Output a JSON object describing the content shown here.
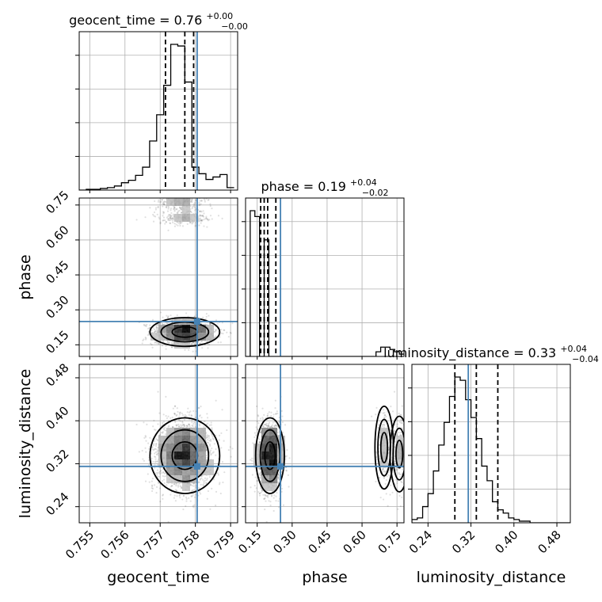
{
  "chart_data": {
    "type": "corner",
    "truth_color": "#4682b4",
    "hist_color": "#000000",
    "scatter_color": "#000000",
    "params": [
      {
        "name": "geocent_time",
        "label": "geocent_time",
        "range": [
          0.7547,
          0.7592
        ],
        "ticks": [
          0.755,
          0.756,
          0.757,
          0.758,
          0.759
        ],
        "tick_labels": [
          "0.755",
          "0.756",
          "0.757",
          "0.758",
          "0.759"
        ],
        "truth": 0.75805,
        "quantiles": [
          0.75715,
          0.7577,
          0.75795
        ],
        "title": {
          "main": "geocent_time = 0.76",
          "sup": "+0.00",
          "sub": "−0.00"
        },
        "hist": {
          "edges_start": 0.7547,
          "bin_width": 0.0002,
          "counts": [
            0,
            1,
            1,
            2,
            3,
            5,
            9,
            12,
            18,
            28,
            60,
            92,
            128,
            178,
            176,
            132,
            28,
            20,
            13,
            16,
            19,
            3
          ]
        }
      },
      {
        "name": "phase",
        "label": "phase",
        "range": [
          0.1,
          0.78
        ],
        "ticks": [
          0.15,
          0.3,
          0.45,
          0.6,
          0.75
        ],
        "tick_labels": [
          "0.15",
          "0.30",
          "0.45",
          "0.60",
          "0.75"
        ],
        "truth": 0.25,
        "quantiles": [
          0.165,
          0.18,
          0.195,
          0.23
        ],
        "title": {
          "main": "phase = 0.19",
          "sup": "+0.04",
          "sub": "−0.02"
        },
        "hist": {
          "edges_start": 0.1,
          "bin_width": 0.02,
          "counts": [
            0,
            125,
            120,
            0,
            100,
            0,
            0,
            0,
            0,
            0,
            0,
            0,
            0,
            0,
            0,
            0,
            0,
            0,
            0,
            0,
            0,
            0,
            0,
            0,
            0,
            0,
            0,
            0,
            4,
            8,
            8,
            6,
            4,
            2
          ]
        }
      },
      {
        "name": "luminosity_distance",
        "label": "luminosity_distance",
        "range": [
          0.21,
          0.505
        ],
        "ticks": [
          0.24,
          0.32,
          0.4,
          0.48
        ],
        "tick_labels": [
          "0.24",
          "0.32",
          "0.40",
          "0.48"
        ],
        "truth": 0.315,
        "quantiles": [
          0.29,
          0.33,
          0.37
        ],
        "title": {
          "main": "luminosity_distance = 0.33",
          "sup": "+0.04",
          "sub": "−0.04"
        },
        "hist": {
          "edges_start": 0.21,
          "bin_width": 0.01,
          "counts": [
            2,
            3,
            10,
            18,
            32,
            48,
            62,
            78,
            90,
            88,
            76,
            65,
            52,
            35,
            26,
            13,
            8,
            6,
            3,
            2,
            1,
            1,
            0,
            0,
            0,
            0,
            0,
            0,
            0,
            0
          ]
        }
      }
    ],
    "clusters": [
      {
        "mx": 0.7577,
        "sx": 0.00045,
        "mp": 0.205,
        "sp": 0.028,
        "md": 0.335,
        "sd": 0.032,
        "n": 1500
      },
      {
        "mx": 0.7576,
        "sx": 0.00035,
        "mp": 0.76,
        "sp": 0.018,
        "md": 0.338,
        "sd": 0.032,
        "n": 220
      },
      {
        "mx": 0.7577,
        "sx": 0.0004,
        "mp": 0.695,
        "sp": 0.018,
        "md": 0.35,
        "sd": 0.035,
        "n": 250
      }
    ]
  }
}
